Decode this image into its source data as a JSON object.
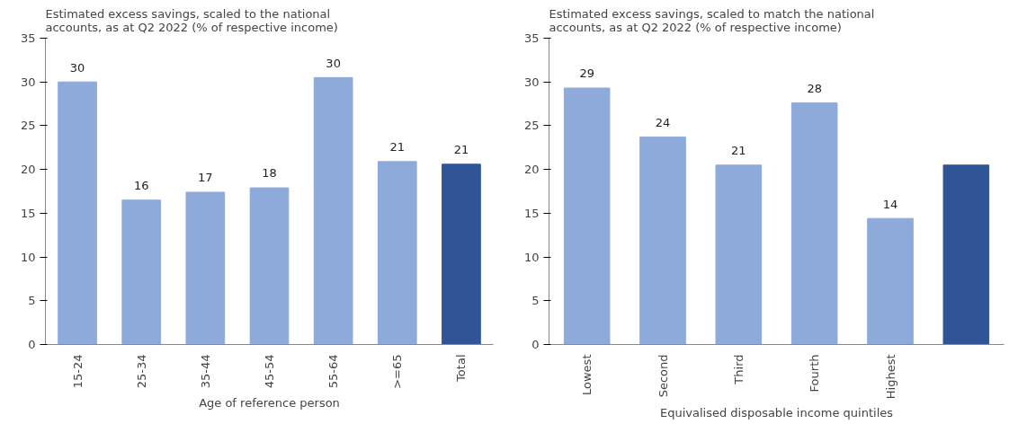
{
  "chart_data": [
    {
      "type": "bar",
      "title": "Estimated excess savings, scaled to the national\naccounts, as at Q2 2022 (% of respective income)",
      "xlabel": "Age of reference person",
      "categories": [
        "15-24",
        "25-34",
        "35-44",
        "45-54",
        "55-64",
        ">=65",
        "Total"
      ],
      "values": [
        30.0,
        16.5,
        17.4,
        17.9,
        30.5,
        20.9,
        20.6
      ],
      "colors": [
        "#8eaadb",
        "#8eaadb",
        "#8eaadb",
        "#8eaadb",
        "#8eaadb",
        "#8eaadb",
        "#2f5597"
      ],
      "value_labels": [
        "30",
        "16",
        "17",
        "18",
        "30",
        "21",
        "21"
      ],
      "ylim": [
        0,
        35
      ],
      "yticks": [
        0,
        5,
        10,
        15,
        20,
        25,
        30,
        35
      ],
      "grid": false
    },
    {
      "type": "bar",
      "title": "Estimated excess savings, scaled to match the national\naccounts, as at Q2 2022 (% of respective income)",
      "xlabel": "Equivalised disposable income quintiles",
      "categories": [
        "Lowest",
        "Second",
        "Third",
        "Fourth",
        "Highest",
        null
      ],
      "values": [
        29.3,
        23.7,
        20.5,
        27.6,
        14.4,
        20.5
      ],
      "colors": [
        "#8eaadb",
        "#8eaadb",
        "#8eaadb",
        "#8eaadb",
        "#8eaadb",
        "#2f5597"
      ],
      "value_labels": [
        "29",
        "24",
        "21",
        "28",
        "14",
        null
      ],
      "ylim": [
        0,
        35
      ],
      "yticks": [
        0,
        5,
        10,
        15,
        20,
        25,
        30,
        35
      ],
      "grid": false
    }
  ]
}
